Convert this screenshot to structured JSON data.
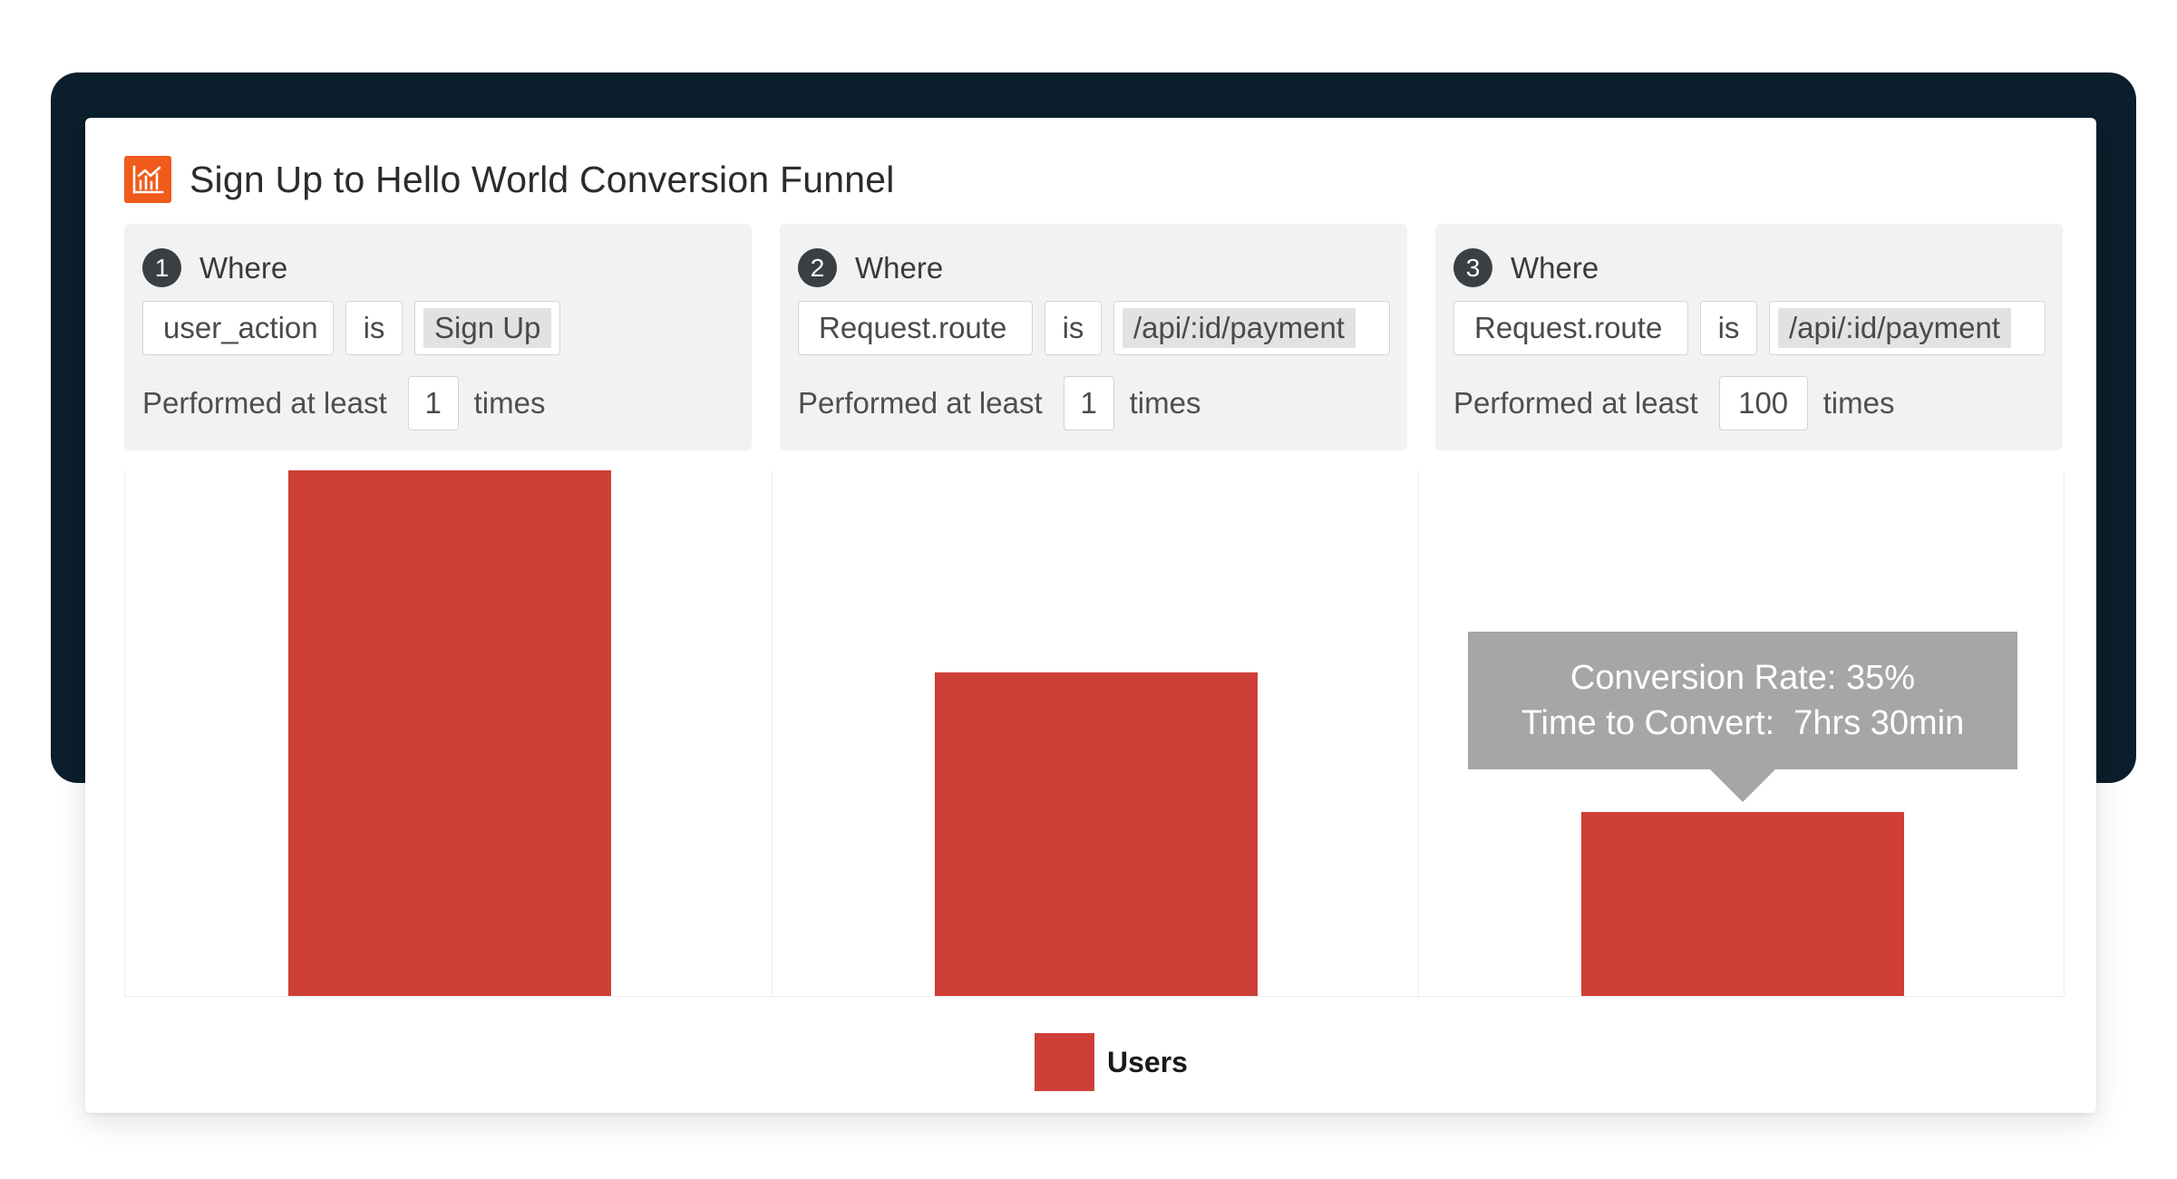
{
  "header": {
    "title": "Sign Up to Hello World Conversion Funnel",
    "icon": "bar-chart-icon",
    "icon_color": "#f05a1a"
  },
  "steps": [
    {
      "number": "1",
      "where_label": "Where",
      "field": "user_action",
      "operator": "is",
      "value": "Sign Up",
      "performed_label": "Performed at least",
      "count": "1",
      "times_label": "times"
    },
    {
      "number": "2",
      "where_label": "Where",
      "field": "Request.route",
      "operator": "is",
      "value": "/api/:id/payment",
      "performed_label": "Performed at least",
      "count": "1",
      "times_label": "times"
    },
    {
      "number": "3",
      "where_label": "Where",
      "field": "Request.route",
      "operator": "is",
      "value": "/api/:id/payment",
      "performed_label": "Performed at least",
      "count": "100",
      "times_label": "times"
    }
  ],
  "chart_data": {
    "type": "bar",
    "categories": [
      "1",
      "2",
      "3"
    ],
    "series": [
      {
        "name": "Users",
        "values": [
          100,
          61.5,
          35
        ],
        "color": "#ce3f37"
      }
    ],
    "ylim": [
      0,
      100
    ],
    "grid": false,
    "legend": "bottom-center"
  },
  "tooltip": {
    "line1": "Conversion Rate: 35%",
    "line2": "Time to Convert:  7hrs 30min"
  },
  "legend": {
    "label": "Users",
    "color": "#ce3f37"
  }
}
